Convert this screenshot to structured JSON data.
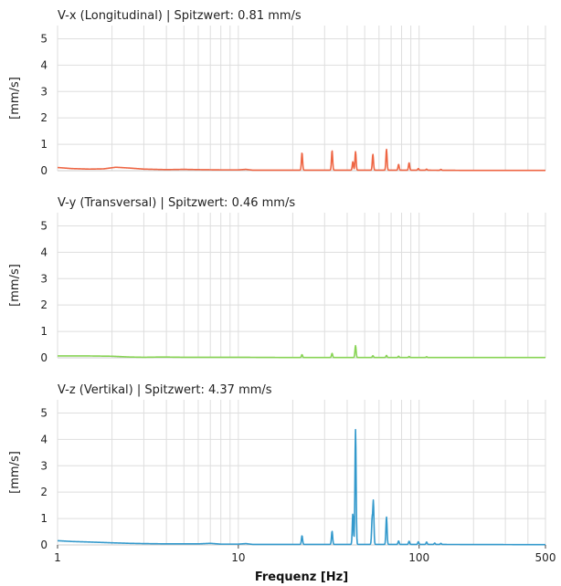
{
  "chart_data": {
    "type": "line",
    "xscale": "log",
    "xlim": [
      1,
      500
    ],
    "x_ticks": [
      "1",
      "10",
      "100",
      "500"
    ],
    "xlabel": "Frequenz [Hz]",
    "grid": true,
    "panels": [
      {
        "title": "V-x (Longitudinal) | Spitzwert: 0.81 mm/s",
        "ylabel": "[mm/s]",
        "ylim": [
          0,
          5.5
        ],
        "y_ticks": [
          "0",
          "1",
          "2",
          "3",
          "4",
          "5"
        ],
        "color": "#ee6644",
        "baseline": [
          [
            1,
            0.12
          ],
          [
            1.2,
            0.08
          ],
          [
            1.5,
            0.06
          ],
          [
            1.8,
            0.07
          ],
          [
            2.1,
            0.13
          ],
          [
            2.5,
            0.1
          ],
          [
            3,
            0.06
          ],
          [
            4,
            0.04
          ],
          [
            5,
            0.05
          ],
          [
            6,
            0.04
          ],
          [
            8,
            0.03
          ],
          [
            10,
            0.03
          ],
          [
            11,
            0.05
          ],
          [
            12,
            0.02
          ],
          [
            20,
            0.02
          ],
          [
            30,
            0.02
          ],
          [
            60,
            0.02
          ],
          [
            100,
            0.02
          ],
          [
            200,
            0.01
          ],
          [
            500,
            0.01
          ]
        ],
        "peaks": [
          [
            22.5,
            0.68
          ],
          [
            33,
            0.76
          ],
          [
            43,
            0.34
          ],
          [
            44.5,
            0.72
          ],
          [
            55.5,
            0.62
          ],
          [
            66,
            0.81
          ],
          [
            77,
            0.24
          ],
          [
            88,
            0.3
          ],
          [
            99,
            0.08
          ],
          [
            110,
            0.06
          ],
          [
            132,
            0.05
          ]
        ]
      },
      {
        "title": "V-y (Transversal) | Spitzwert: 0.46 mm/s",
        "ylabel": "[mm/s]",
        "ylim": [
          0,
          5.5
        ],
        "y_ticks": [
          "0",
          "1",
          "2",
          "3",
          "4",
          "5"
        ],
        "color": "#88d455",
        "baseline": [
          [
            1,
            0.07
          ],
          [
            1.5,
            0.07
          ],
          [
            2,
            0.06
          ],
          [
            2.5,
            0.03
          ],
          [
            3,
            0.02
          ],
          [
            3.8,
            0.03
          ],
          [
            5,
            0.02
          ],
          [
            10,
            0.02
          ],
          [
            20,
            0.01
          ],
          [
            50,
            0.01
          ],
          [
            100,
            0.01
          ],
          [
            500,
            0.01
          ]
        ],
        "peaks": [
          [
            22.5,
            0.12
          ],
          [
            33,
            0.17
          ],
          [
            44.5,
            0.46
          ],
          [
            55.5,
            0.08
          ],
          [
            66,
            0.09
          ],
          [
            77,
            0.06
          ],
          [
            88,
            0.05
          ],
          [
            110,
            0.04
          ]
        ]
      },
      {
        "title": "V-z (Vertikal) | Spitzwert: 4.37 mm/s",
        "ylabel": "[mm/s]",
        "ylim": [
          0,
          5.5
        ],
        "y_ticks": [
          "0",
          "1",
          "2",
          "3",
          "4",
          "5"
        ],
        "color": "#3399cc",
        "baseline": [
          [
            1,
            0.16
          ],
          [
            1.2,
            0.13
          ],
          [
            1.5,
            0.11
          ],
          [
            2,
            0.08
          ],
          [
            2.5,
            0.06
          ],
          [
            3,
            0.05
          ],
          [
            4,
            0.04
          ],
          [
            6,
            0.04
          ],
          [
            7,
            0.06
          ],
          [
            8,
            0.03
          ],
          [
            10,
            0.03
          ],
          [
            11,
            0.05
          ],
          [
            12,
            0.02
          ],
          [
            20,
            0.02
          ],
          [
            50,
            0.02
          ],
          [
            100,
            0.02
          ],
          [
            500,
            0.01
          ]
        ],
        "peaks": [
          [
            22.5,
            0.35
          ],
          [
            33,
            0.52
          ],
          [
            43,
            1.18
          ],
          [
            44.5,
            4.37
          ],
          [
            55,
            0.98
          ],
          [
            55.8,
            1.7
          ],
          [
            66,
            1.06
          ],
          [
            77,
            0.15
          ],
          [
            88,
            0.14
          ],
          [
            99,
            0.12
          ],
          [
            110,
            0.11
          ],
          [
            122,
            0.07
          ],
          [
            132,
            0.06
          ]
        ]
      }
    ]
  }
}
